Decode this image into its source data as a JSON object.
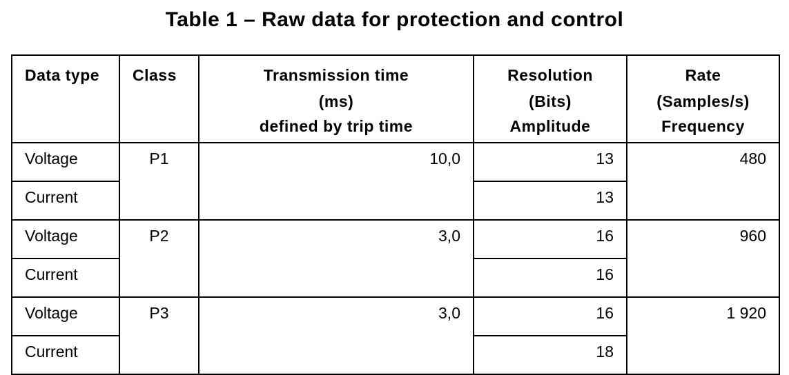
{
  "title": "Table 1 – Raw data for protection and control",
  "table": {
    "headers": {
      "data_type": "Data type",
      "class": "Class",
      "transmission": {
        "line1": "Transmission time",
        "line2": "(ms)",
        "line3": "defined by trip time"
      },
      "resolution": {
        "line1": "Resolution",
        "line2": "(Bits)",
        "line3": "Amplitude"
      },
      "rate": {
        "line1": "Rate",
        "line2": "(Samples/s)",
        "line3": "Frequency"
      }
    },
    "groups": [
      {
        "class": "P1",
        "transmission_time": "10,0",
        "rate": "480",
        "rows": [
          {
            "data_type": "Voltage",
            "resolution": "13"
          },
          {
            "data_type": "Current",
            "resolution": "13"
          }
        ]
      },
      {
        "class": "P2",
        "transmission_time": "3,0",
        "rate": "960",
        "rows": [
          {
            "data_type": "Voltage",
            "resolution": "16"
          },
          {
            "data_type": "Current",
            "resolution": "16"
          }
        ]
      },
      {
        "class": "P3",
        "transmission_time": "3,0",
        "rate": "1 920",
        "rows": [
          {
            "data_type": "Voltage",
            "resolution": "16"
          },
          {
            "data_type": "Current",
            "resolution": "18"
          }
        ]
      }
    ]
  }
}
